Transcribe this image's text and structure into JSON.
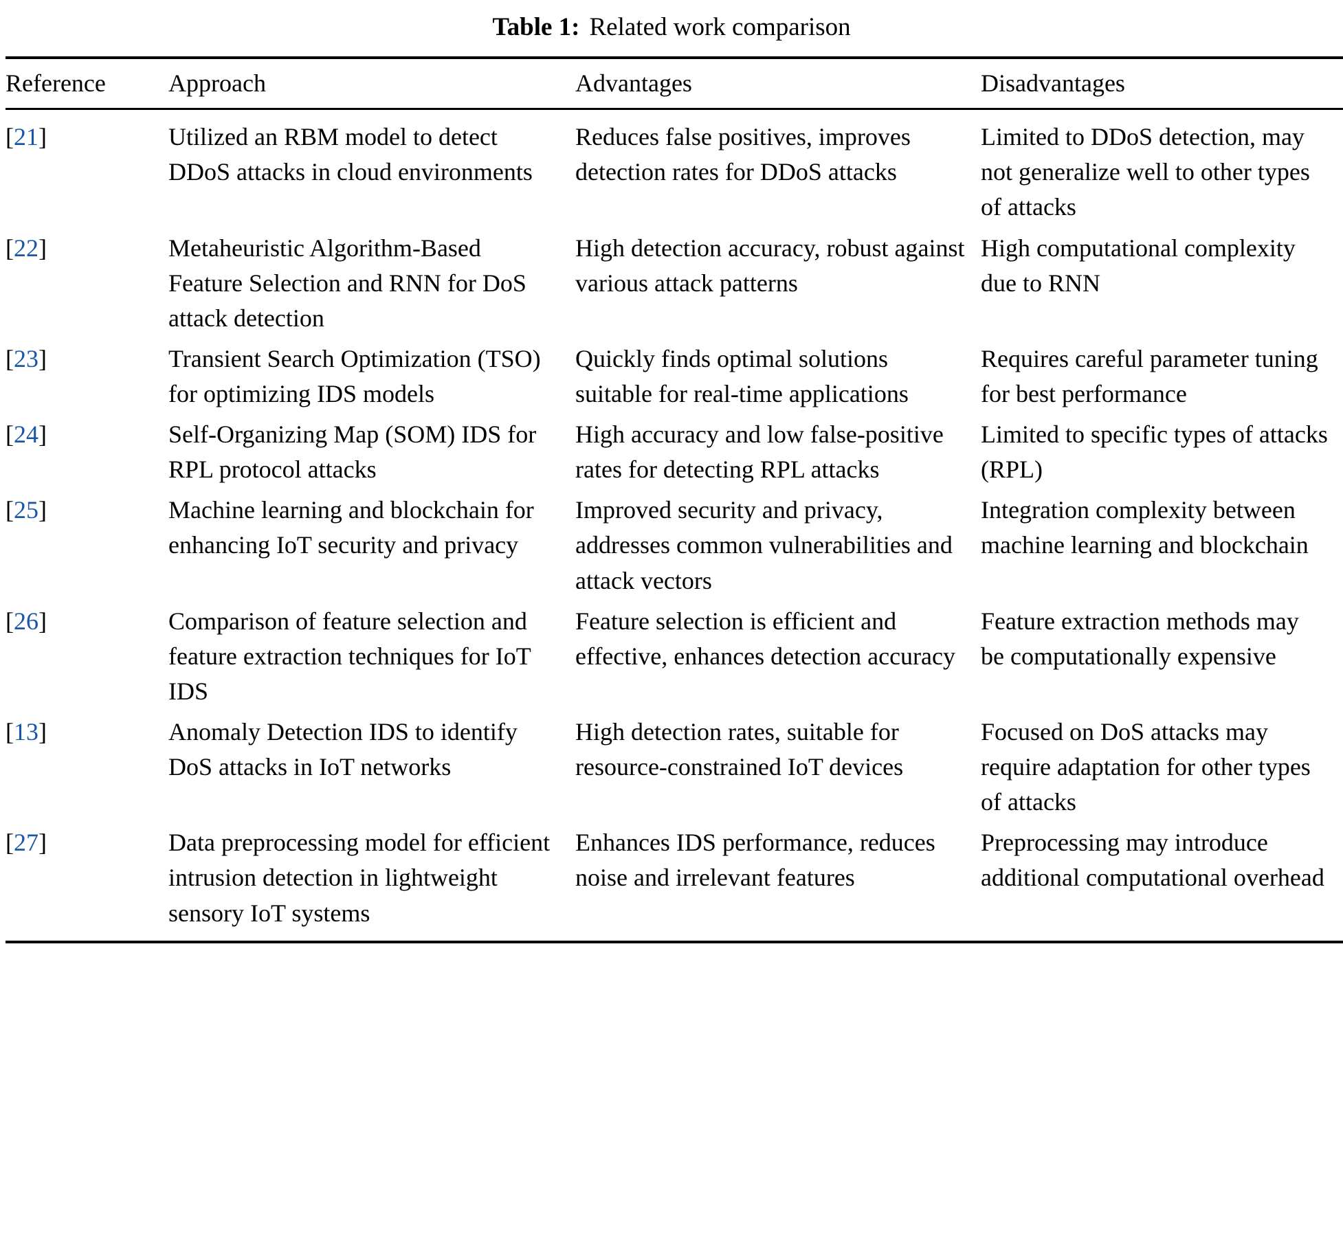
{
  "caption": {
    "label": "Table 1:",
    "text": "Related work comparison"
  },
  "table": {
    "bracket_open": "[",
    "bracket_close": "]",
    "headers": {
      "reference": "Reference",
      "approach": "Approach",
      "advantages": "Advantages",
      "disadvantages": "Disadvantages"
    },
    "rows": [
      {
        "ref": "21",
        "approach": "Utilized an RBM model to detect DDoS attacks in cloud environments",
        "advantages": "Reduces false positives, improves detection rates for DDoS attacks",
        "disadvantages": "Limited to DDoS detection, may not generalize well to other types of attacks"
      },
      {
        "ref": "22",
        "approach": "Metaheuristic Algorithm-Based Feature Selection and RNN for DoS attack detection",
        "advantages": "High detection accuracy, robust against various attack patterns",
        "disadvantages": "High computational complexity due to RNN"
      },
      {
        "ref": "23",
        "approach": "Transient Search Optimization (TSO) for optimizing IDS models",
        "advantages": "Quickly finds optimal solutions suitable for real-time applications",
        "disadvantages": "Requires careful parameter tuning for best performance"
      },
      {
        "ref": "24",
        "approach": "Self-Organizing Map (SOM) IDS for RPL protocol attacks",
        "advantages": "High accuracy and low false-positive rates for detecting RPL attacks",
        "disadvantages": "Limited to specific types of attacks (RPL)"
      },
      {
        "ref": "25",
        "approach": "Machine learning and blockchain for enhancing IoT security and privacy",
        "advantages": "Improved security and privacy, addresses common vulnerabilities and attack vectors",
        "disadvantages": "Integration complexity between machine learning and blockchain"
      },
      {
        "ref": "26",
        "approach": "Comparison of feature selection and feature extraction techniques for IoT IDS",
        "advantages": "Feature selection is efficient and effective, enhances detection accuracy",
        "disadvantages": "Feature extraction methods may be computationally expensive"
      },
      {
        "ref": "13",
        "approach": "Anomaly Detection IDS to identify DoS attacks in IoT networks",
        "advantages": "High detection rates, suitable for resource-constrained IoT devices",
        "disadvantages": "Focused on DoS attacks may require adaptation for other types of attacks"
      },
      {
        "ref": "27",
        "approach": "Data preprocessing model for efficient intrusion detection in lightweight sensory IoT systems",
        "advantages": "Enhances IDS performance, reduces noise and irrelevant features",
        "disadvantages": "Preprocessing may introduce additional computational overhead"
      }
    ]
  }
}
